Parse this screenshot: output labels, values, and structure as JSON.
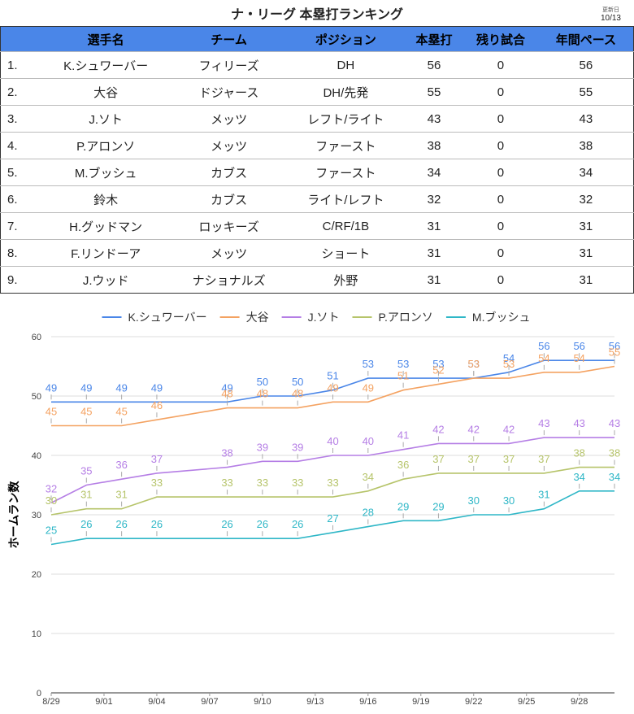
{
  "header": {
    "title": "ナ・リーグ 本塁打ランキング",
    "update_label": "更新日",
    "update_date": "10/13"
  },
  "table": {
    "columns": [
      "選手名",
      "チーム",
      "ポジション",
      "本塁打",
      "残り試合",
      "年間ペース"
    ],
    "rows": [
      [
        "1.",
        "K.シュワーバー",
        "フィリーズ",
        "DH",
        56,
        0,
        56
      ],
      [
        "2.",
        "大谷",
        "ドジャース",
        "DH/先発",
        55,
        0,
        55
      ],
      [
        "3.",
        "J.ソト",
        "メッツ",
        "レフト/ライト",
        43,
        0,
        43
      ],
      [
        "4.",
        "P.アロンソ",
        "メッツ",
        "ファースト",
        38,
        0,
        38
      ],
      [
        "5.",
        "M.ブッシュ",
        "カブス",
        "ファースト",
        34,
        0,
        34
      ],
      [
        "6.",
        "鈴木",
        "カブス",
        "ライト/レフト",
        32,
        0,
        32
      ],
      [
        "7.",
        "H.グッドマン",
        "ロッキーズ",
        "C/RF/1B",
        31,
        0,
        31
      ],
      [
        "8.",
        "F.リンドーア",
        "メッツ",
        "ショート",
        31,
        0,
        31
      ],
      [
        "9.",
        "J.ウッド",
        "ナショナルズ",
        "外野",
        31,
        0,
        31
      ]
    ]
  },
  "chart_data": {
    "type": "line",
    "y_label": "ホームラン数",
    "x": [
      "8/29",
      "8/31",
      "9/02",
      "9/04",
      "9/08",
      "9/10",
      "9/12",
      "9/14",
      "9/16",
      "9/18",
      "9/20",
      "9/22",
      "9/24",
      "9/26",
      "9/28",
      "9/30"
    ],
    "xlim": [
      "8/29",
      "9/30"
    ],
    "xticks": [
      "8/29",
      "9/01",
      "9/04",
      "9/07",
      "9/10",
      "9/13",
      "9/16",
      "9/19",
      "9/22",
      "9/25",
      "9/28"
    ],
    "ylim": [
      0,
      60
    ],
    "yticks": [
      0,
      10,
      20,
      30,
      40,
      50,
      60
    ],
    "grid": true,
    "legend": "top",
    "series": [
      {
        "name": "K.シュワーバー",
        "color": "#4a86e8",
        "values": [
          49,
          49,
          49,
          49,
          49,
          50,
          50,
          51,
          53,
          53,
          53,
          53,
          54,
          56,
          56,
          56
        ]
      },
      {
        "name": "大谷",
        "color": "#f4a261",
        "values": [
          45,
          45,
          45,
          46,
          48,
          48,
          48,
          49,
          49,
          51,
          52,
          53,
          53,
          54,
          54,
          55
        ]
      },
      {
        "name": "J.ソト",
        "color": "#b57ee5",
        "values": [
          32,
          35,
          36,
          37,
          38,
          39,
          39,
          40,
          40,
          41,
          42,
          42,
          42,
          43,
          43,
          43
        ]
      },
      {
        "name": "P.アロンソ",
        "color": "#b6c46a",
        "values": [
          30,
          31,
          31,
          33,
          33,
          33,
          33,
          33,
          34,
          36,
          37,
          37,
          37,
          37,
          38,
          38
        ]
      },
      {
        "name": "M.ブッシュ",
        "color": "#2fb7c7",
        "values": [
          25,
          26,
          26,
          26,
          26,
          26,
          26,
          27,
          28,
          29,
          29,
          30,
          30,
          31,
          34,
          34
        ]
      }
    ]
  }
}
